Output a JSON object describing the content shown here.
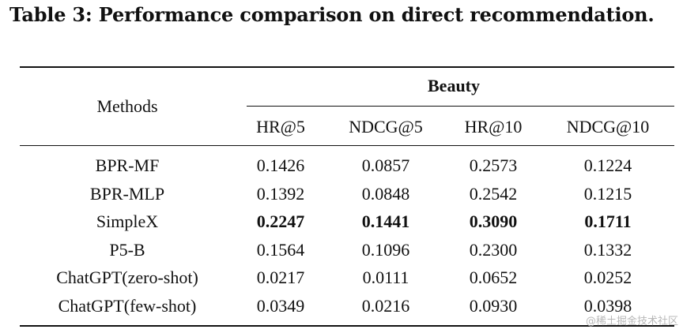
{
  "caption": "Table 3: Performance comparison on direct recommendation.",
  "table": {
    "row_header": "Methods",
    "group_header": "Beauty",
    "columns": [
      "HR@5",
      "NDCG@5",
      "HR@10",
      "NDCG@10"
    ],
    "rows": [
      {
        "method": "BPR-MF",
        "values": [
          "0.1426",
          "0.0857",
          "0.2573",
          "0.1224"
        ],
        "bold": false
      },
      {
        "method": "BPR-MLP",
        "values": [
          "0.1392",
          "0.0848",
          "0.2542",
          "0.1215"
        ],
        "bold": false
      },
      {
        "method": "SimpleX",
        "values": [
          "0.2247",
          "0.1441",
          "0.3090",
          "0.1711"
        ],
        "bold": true
      },
      {
        "method": "P5-B",
        "values": [
          "0.1564",
          "0.1096",
          "0.2300",
          "0.1332"
        ],
        "bold": false
      },
      {
        "method": "ChatGPT(zero-shot)",
        "values": [
          "0.0217",
          "0.0111",
          "0.0652",
          "0.0252"
        ],
        "bold": false
      },
      {
        "method": "ChatGPT(few-shot)",
        "values": [
          "0.0349",
          "0.0216",
          "0.0930",
          "0.0398"
        ],
        "bold": false
      }
    ]
  },
  "watermark": "@稀土掘金技术社区"
}
